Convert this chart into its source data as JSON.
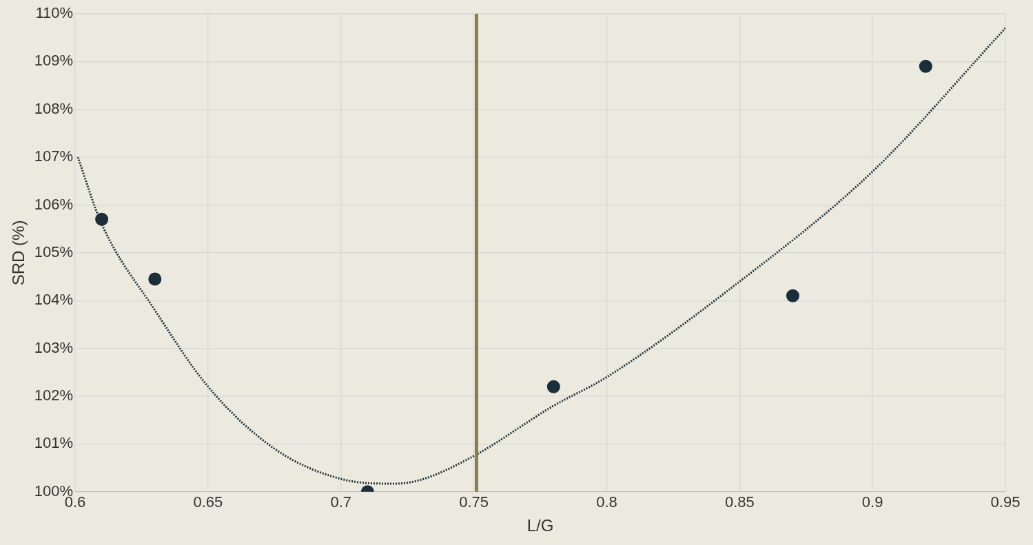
{
  "chart_data": {
    "type": "scatter",
    "xlabel": "L/G",
    "ylabel": "SRD (%)",
    "xlim": [
      0.6,
      0.95
    ],
    "xticks": [
      0.6,
      0.65,
      0.7,
      0.75,
      0.8,
      0.85,
      0.9,
      0.95
    ],
    "ylim": [
      100,
      110
    ],
    "yticks": [
      {
        "value": 100,
        "label": "100%"
      },
      {
        "value": 101,
        "label": "101%"
      },
      {
        "value": 102,
        "label": "102%"
      },
      {
        "value": 103,
        "label": "103%"
      },
      {
        "value": 104,
        "label": "104%"
      },
      {
        "value": 105,
        "label": "105%"
      },
      {
        "value": 106,
        "label": "106%"
      },
      {
        "value": 107,
        "label": "107%"
      },
      {
        "value": 108,
        "label": "108%"
      },
      {
        "value": 109,
        "label": "109%"
      },
      {
        "value": 110,
        "label": "110%"
      }
    ],
    "grid": true,
    "legend": false,
    "series": [
      {
        "color": "#1b2f3a",
        "marker": "circle",
        "x": [
          0.61,
          0.63,
          0.71,
          0.78,
          0.87,
          0.92
        ],
        "values": [
          105.7,
          104.45,
          100.0,
          102.2,
          104.1,
          108.9
        ]
      },
      {
        "type": "line",
        "color": "#1b2f3a",
        "line_style": "dotted",
        "marker": "none",
        "x": [
          0.601,
          0.61,
          0.63,
          0.65,
          0.675,
          0.7,
          0.72,
          0.73,
          0.75,
          0.78,
          0.8,
          0.85,
          0.9,
          0.95
        ],
        "values": [
          107.0,
          105.6,
          103.8,
          102.2,
          100.9,
          100.27,
          100.17,
          100.25,
          100.75,
          101.8,
          102.4,
          104.4,
          106.7,
          109.7
        ]
      }
    ],
    "ref_lines": [
      {
        "axis": "x",
        "value": 0.751,
        "color": "#8b7d4f",
        "line_style": "solid"
      }
    ]
  }
}
